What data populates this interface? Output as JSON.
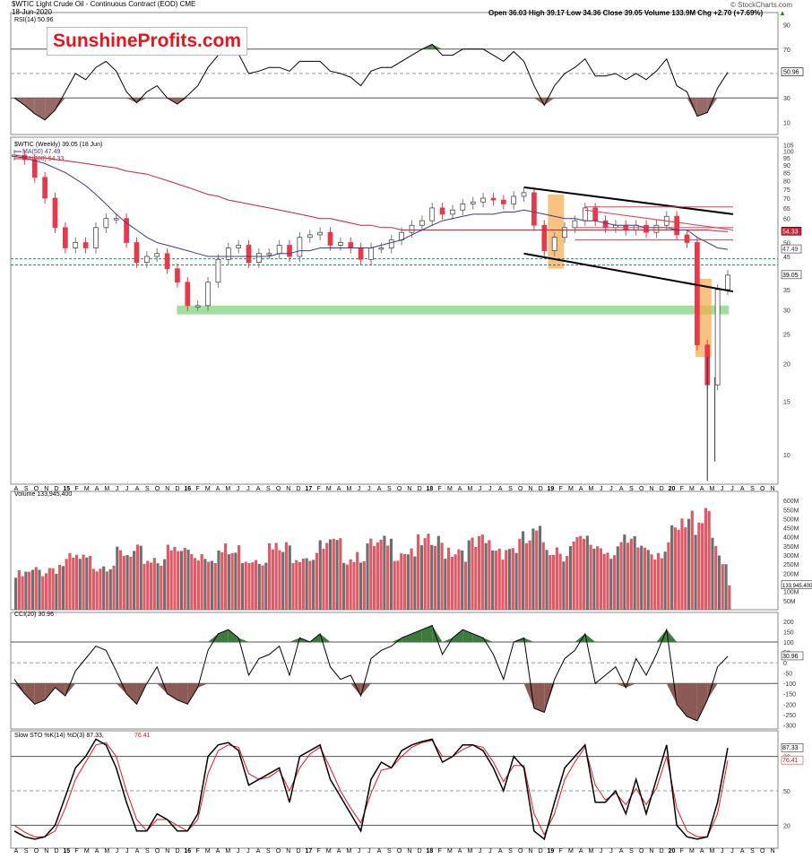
{
  "header": {
    "symbol_line": "$WTIC Light Crude Oil - Continuous Contract (EOD) CME",
    "date": "18-Jun-2020",
    "quote": "Open 36.03 High 39.17 Low 34.36 Close 39.05 Volume 133.9M Chg +2.70 (+7.69%)",
    "quote_arrow": "▲",
    "credit": "© StockCharts.com",
    "logo": "SunshineProfits.com"
  },
  "colors": {
    "up": "#7a7a7a",
    "down": "#e8394a",
    "ma50": "#3b3b8c",
    "ma200": "#cc2233",
    "green_zone": "#7fd67f",
    "orange_zone": "#f5a94a",
    "neg_fill": "#8b5a55",
    "pos_fill": "#3e7a3e",
    "stoch_d": "#e8141b"
  },
  "x_axis": {
    "labels": [
      "A",
      "S",
      "O",
      "N",
      "D",
      "15",
      "F",
      "M",
      "A",
      "M",
      "J",
      "J",
      "A",
      "S",
      "O",
      "N",
      "D",
      "16",
      "F",
      "M",
      "A",
      "M",
      "J",
      "J",
      "A",
      "S",
      "O",
      "N",
      "D",
      "17",
      "F",
      "M",
      "A",
      "M",
      "J",
      "J",
      "A",
      "S",
      "O",
      "N",
      "D",
      "18",
      "F",
      "M",
      "A",
      "M",
      "J",
      "J",
      "A",
      "S",
      "O",
      "N",
      "D",
      "19",
      "F",
      "M",
      "A",
      "M",
      "J",
      "J",
      "A",
      "S",
      "O",
      "N",
      "D",
      "20",
      "F",
      "M",
      "A",
      "M",
      "J",
      "J",
      "A",
      "S",
      "O",
      "N"
    ]
  },
  "panels": {
    "rsi": {
      "legend": "RSI(14) 50.96",
      "ticks": [
        "90",
        "70",
        "30",
        "10"
      ],
      "value_label": "50.96"
    },
    "price": {
      "legend": "$WTIC (Weekly) 39.05 (18 Jun)",
      "ma50_legend": "MA(50) 47.49",
      "ma200_legend": "MA(200) 54.33",
      "ticks": [
        "105",
        "100",
        "95",
        "90",
        "85",
        "80",
        "75",
        "70",
        "65",
        "60",
        "55",
        "50",
        "45",
        "40",
        "35",
        "30",
        "25",
        "20",
        "15",
        "10"
      ],
      "labels": {
        "ma200": "54.33",
        "ma50": "47.49",
        "close": "39.05"
      }
    },
    "volume": {
      "legend": "Volume 133,945,400",
      "ticks": [
        "600M",
        "550M",
        "500M",
        "450M",
        "400M",
        "350M",
        "300M",
        "250M",
        "200M",
        "150M",
        "100M",
        "50M"
      ],
      "value_label": "133,945,400"
    },
    "cci": {
      "legend": "CCI(20) 30.96",
      "ticks": [
        "200",
        "100",
        "0",
        "-100",
        "-200",
        "-300",
        "50",
        "-50",
        "-150",
        "-250",
        "150"
      ],
      "value_label": "30.96"
    },
    "stoch": {
      "legend_prefix": "Slow STO %K(14) %D(3) 87.33,",
      "legend_d": "76.41",
      "ticks": [
        "80",
        "50",
        "20"
      ],
      "k_label": "87.33",
      "d_label": "76.41"
    }
  },
  "chart_data": {
    "type": "line",
    "title": "$WTIC Light Crude Oil - Continuous Contract (EOD) CME",
    "period": "weekly",
    "x": [
      "2014-08",
      "2014-09",
      "2014-10",
      "2014-11",
      "2014-12",
      "2015-01",
      "2015-02",
      "2015-03",
      "2015-04",
      "2015-05",
      "2015-06",
      "2015-07",
      "2015-08",
      "2015-09",
      "2015-10",
      "2015-11",
      "2015-12",
      "2016-01",
      "2016-02",
      "2016-03",
      "2016-04",
      "2016-05",
      "2016-06",
      "2016-07",
      "2016-08",
      "2016-09",
      "2016-10",
      "2016-11",
      "2016-12",
      "2017-01",
      "2017-02",
      "2017-03",
      "2017-04",
      "2017-05",
      "2017-06",
      "2017-07",
      "2017-08",
      "2017-09",
      "2017-10",
      "2017-11",
      "2017-12",
      "2018-01",
      "2018-02",
      "2018-03",
      "2018-04",
      "2018-05",
      "2018-06",
      "2018-07",
      "2018-08",
      "2018-09",
      "2018-10",
      "2018-11",
      "2018-12",
      "2019-01",
      "2019-02",
      "2019-03",
      "2019-04",
      "2019-05",
      "2019-06",
      "2019-07",
      "2019-08",
      "2019-09",
      "2019-10",
      "2019-11",
      "2019-12",
      "2020-01",
      "2020-02",
      "2020-03",
      "2020-04",
      "2020-05",
      "2020-06"
    ],
    "series": [
      {
        "name": "$WTIC",
        "values": [
          97,
          94,
          82,
          70,
          56,
          48,
          50,
          48,
          56,
          60,
          60,
          50,
          43,
          45,
          46,
          41,
          37,
          31,
          31,
          37,
          44,
          48,
          49,
          43,
          46,
          46,
          49,
          45,
          52,
          53,
          54,
          49,
          50,
          48,
          44,
          48,
          48,
          51,
          54,
          57,
          59,
          65,
          62,
          64,
          67,
          68,
          70,
          69,
          67,
          71,
          73,
          57,
          47,
          52,
          56,
          59,
          65,
          59,
          56,
          57,
          55,
          57,
          54,
          57,
          61,
          53,
          50,
          23,
          17,
          35,
          39.05
        ]
      },
      {
        "name": "MA(50)",
        "values": [
          96,
          95,
          93,
          91,
          88,
          85,
          81,
          77,
          72,
          67,
          62,
          58,
          55,
          52,
          50,
          49,
          48,
          47,
          46,
          45,
          45,
          45,
          45,
          45,
          45,
          45,
          46,
          46,
          47,
          47,
          48,
          48,
          48,
          48,
          48,
          48,
          49,
          50,
          51,
          53,
          55,
          57,
          59,
          60,
          61,
          62,
          62,
          62,
          63,
          63,
          64,
          63,
          62,
          61,
          60,
          60,
          59,
          59,
          58,
          57,
          57,
          57,
          56,
          56,
          56,
          55,
          55,
          52,
          50,
          48,
          47.49
        ]
      },
      {
        "name": "MA(200)",
        "values": [
          97,
          96,
          95,
          95,
          94,
          93,
          92,
          91,
          90,
          89,
          88,
          86,
          85,
          84,
          82,
          80,
          78,
          76,
          74,
          72,
          71,
          69,
          68,
          67,
          66,
          65,
          64,
          63,
          62,
          61,
          60,
          60,
          59,
          58,
          57,
          57,
          56,
          56,
          55,
          55,
          55,
          55,
          55,
          55,
          55,
          55,
          55,
          55,
          55,
          55,
          55,
          55,
          55,
          55,
          55,
          55,
          55,
          55,
          55,
          55,
          55,
          55,
          55,
          55,
          55,
          55,
          55,
          55,
          55,
          54.5,
          54.33
        ]
      }
    ],
    "rsi": {
      "name": "RSI(14)",
      "last": 50.96,
      "overbought": 70,
      "oversold": 30,
      "values": [
        30,
        24,
        17,
        12,
        20,
        35,
        50,
        45,
        55,
        60,
        52,
        35,
        26,
        35,
        40,
        30,
        25,
        32,
        40,
        55,
        65,
        70,
        66,
        50,
        52,
        55,
        55,
        52,
        60,
        60,
        60,
        52,
        50,
        47,
        40,
        52,
        55,
        55,
        60,
        65,
        70,
        74,
        65,
        65,
        70,
        70,
        70,
        65,
        60,
        68,
        60,
        40,
        24,
        40,
        50,
        55,
        62,
        48,
        48,
        50,
        45,
        50,
        45,
        52,
        62,
        40,
        35,
        15,
        18,
        38,
        50.96
      ]
    },
    "volume": {
      "name": "Volume",
      "last": 133945400,
      "values": [
        180000000.0,
        190000000.0,
        210000000.0,
        230000000.0,
        250000000.0,
        260000000.0,
        270000000.0,
        260000000.0,
        270000000.0,
        280000000.0,
        290000000.0,
        280000000.0,
        300000000.0,
        290000000.0,
        300000000.0,
        310000000.0,
        320000000.0,
        330000000.0,
        320000000.0,
        330000000.0,
        320000000.0,
        310000000.0,
        320000000.0,
        310000000.0,
        320000000.0,
        330000000.0,
        320000000.0,
        330000000.0,
        340000000.0,
        320000000.0,
        330000000.0,
        340000000.0,
        330000000.0,
        320000000.0,
        340000000.0,
        330000000.0,
        340000000.0,
        350000000.0,
        360000000.0,
        350000000.0,
        340000000.0,
        360000000.0,
        350000000.0,
        360000000.0,
        350000000.0,
        340000000.0,
        360000000.0,
        350000000.0,
        360000000.0,
        350000000.0,
        370000000.0,
        400000000.0,
        380000000.0,
        360000000.0,
        340000000.0,
        350000000.0,
        360000000.0,
        370000000.0,
        350000000.0,
        360000000.0,
        340000000.0,
        350000000.0,
        360000000.0,
        350000000.0,
        370000000.0,
        420000000.0,
        460000000.0,
        550000000.0,
        610000000.0,
        250000000.0,
        134000000.0
      ]
    },
    "cci": {
      "name": "CCI(20)",
      "last": 30.96,
      "values": [
        -80,
        -150,
        -200,
        -180,
        -120,
        -160,
        -40,
        20,
        80,
        60,
        -40,
        -150,
        -200,
        -100,
        -20,
        -150,
        -180,
        -200,
        -120,
        60,
        140,
        160,
        120,
        -60,
        20,
        40,
        80,
        -60,
        120,
        100,
        140,
        -20,
        -80,
        -60,
        -160,
        20,
        60,
        80,
        120,
        140,
        160,
        180,
        40,
        120,
        160,
        140,
        120,
        40,
        -80,
        100,
        120,
        -220,
        -240,
        -80,
        20,
        60,
        140,
        -100,
        -60,
        -20,
        -120,
        20,
        -60,
        40,
        160,
        -200,
        -260,
        -280,
        -180,
        -20,
        30.96
      ]
    },
    "stoch": {
      "name": "Slow STO %K(14) %D(3)",
      "k_last": 87.33,
      "d_last": 76.41,
      "k": [
        15,
        10,
        8,
        10,
        20,
        45,
        70,
        80,
        95,
        90,
        70,
        40,
        15,
        15,
        30,
        25,
        15,
        15,
        30,
        80,
        90,
        92,
        85,
        55,
        60,
        65,
        70,
        40,
        80,
        85,
        90,
        60,
        45,
        30,
        15,
        60,
        75,
        70,
        85,
        90,
        93,
        95,
        75,
        80,
        90,
        90,
        85,
        70,
        50,
        80,
        70,
        15,
        8,
        40,
        70,
        80,
        90,
        40,
        40,
        50,
        30,
        60,
        30,
        60,
        90,
        20,
        10,
        8,
        10,
        40,
        87.33
      ],
      "d": [
        20,
        14,
        10,
        10,
        15,
        35,
        60,
        75,
        90,
        92,
        80,
        50,
        25,
        15,
        25,
        25,
        20,
        15,
        25,
        65,
        85,
        90,
        88,
        65,
        60,
        62,
        68,
        50,
        70,
        82,
        88,
        70,
        50,
        35,
        22,
        48,
        68,
        70,
        80,
        88,
        92,
        94,
        80,
        80,
        86,
        90,
        88,
        75,
        58,
        72,
        72,
        30,
        12,
        30,
        60,
        75,
        88,
        55,
        42,
        48,
        38,
        52,
        38,
        52,
        80,
        35,
        15,
        10,
        10,
        30,
        76.41
      ]
    }
  }
}
